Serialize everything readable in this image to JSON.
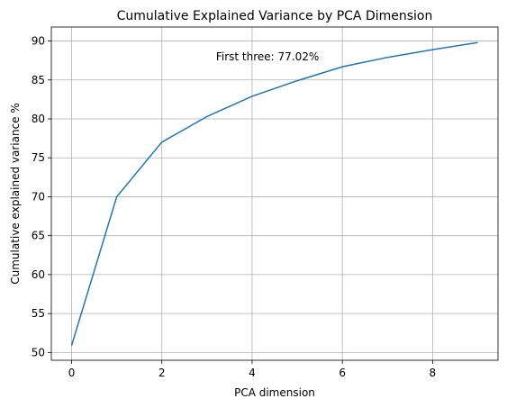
{
  "chart_data": {
    "type": "line",
    "title": "Cumulative Explained Variance by PCA Dimension",
    "xlabel": "PCA dimension",
    "ylabel": "Cumulative explained variance %",
    "x": [
      0,
      1,
      2,
      3,
      4,
      5,
      6,
      7,
      8,
      9
    ],
    "series": [
      {
        "values": [
          50.9,
          70.0,
          77.02,
          80.3,
          82.9,
          84.9,
          86.7,
          87.9,
          88.9,
          89.8
        ]
      }
    ],
    "xlim": [
      -0.45,
      9.45
    ],
    "ylim": [
      49.0,
      91.8
    ],
    "xticks": [
      "0",
      "2",
      "4",
      "6",
      "8"
    ],
    "yticks": [
      "50",
      "55",
      "60",
      "65",
      "70",
      "75",
      "80",
      "85",
      "90"
    ],
    "annotation": {
      "text": "First three: 77.02%",
      "x": 3.2,
      "y": 87.5
    },
    "grid": true,
    "line_color": "#1f77b4"
  }
}
